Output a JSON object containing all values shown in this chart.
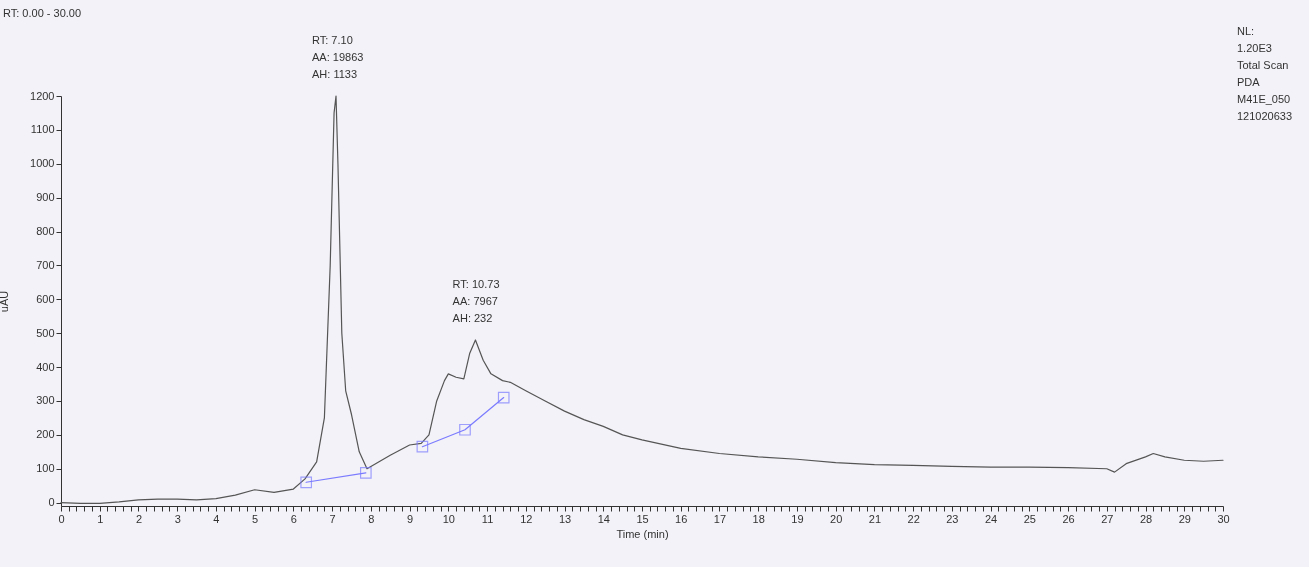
{
  "chart_data": {
    "type": "line",
    "title": "RT: 0.00 - 30.00",
    "xlabel": "Time (min)",
    "ylabel": "uAU",
    "annotations": [
      {
        "text": "RT: 7.10\nAA: 19863\nAH: 1133",
        "x": 7.1,
        "y": 1200
      },
      {
        "text": "RT: 10.73\nAA: 7967\nAH: 232",
        "x": 10.73,
        "y": 480
      },
      "NL:\n1.20E3\nTotal Scan\nPDA\nM41E_050\n121020633"
    ],
    "series": [
      {
        "color": "#555555",
        "marker": "none",
        "x": [
          0,
          0.5,
          1,
          1.5,
          2,
          2.5,
          3,
          3.5,
          4,
          4.5,
          5,
          5.5,
          6,
          6.3,
          6.6,
          6.8,
          6.95,
          7.05,
          7.1,
          7.15,
          7.25,
          7.35,
          7.5,
          7.7,
          7.9,
          8.2,
          8.5,
          9,
          9.3,
          9.5,
          9.7,
          9.9,
          10.0,
          10.2,
          10.4,
          10.55,
          10.7,
          10.9,
          11.1,
          11.4,
          11.6,
          12,
          12.5,
          13,
          13.5,
          14,
          14.5,
          15,
          16,
          17,
          18,
          19,
          20,
          21,
          22,
          23,
          24,
          25,
          26,
          27,
          27.2,
          27.5,
          28,
          28.2,
          28.5,
          29,
          29.5,
          30
        ],
        "values": [
          0,
          -2,
          -2,
          2,
          8,
          10,
          10,
          8,
          12,
          22,
          38,
          30,
          40,
          70,
          120,
          250,
          700,
          1150,
          1200,
          1000,
          500,
          330,
          260,
          150,
          100,
          120,
          140,
          170,
          175,
          200,
          300,
          360,
          380,
          370,
          365,
          440,
          480,
          420,
          380,
          360,
          355,
          330,
          300,
          270,
          245,
          225,
          200,
          185,
          160,
          145,
          135,
          128,
          118,
          112,
          110,
          107,
          105,
          105,
          103,
          100,
          90,
          115,
          135,
          145,
          135,
          125,
          122,
          125
        ]
      },
      {
        "color": "#7b7bff",
        "marker": "square",
        "x": [
          6.33,
          7.87,
          8.6,
          9.33,
          10.43,
          11.43
        ],
        "values": [
          60,
          88,
          null,
          165,
          215,
          310
        ]
      }
    ],
    "xlim": [
      0,
      30
    ],
    "ylim": [
      -10,
      1200
    ],
    "xticks": [
      0,
      {
        "value": 0.2,
        "label": null
      },
      {
        "value": 0.4,
        "label": null
      },
      {
        "value": 0.6,
        "label": null
      },
      {
        "value": 0.8,
        "label": null
      },
      1,
      {
        "value": 1.2,
        "label": null
      },
      {
        "value": 1.4,
        "label": null
      },
      {
        "value": 1.6,
        "label": null
      },
      {
        "value": 1.8,
        "label": null
      },
      2,
      {
        "value": 2.2,
        "label": null
      },
      {
        "value": 2.4,
        "label": null
      },
      {
        "value": 2.6,
        "label": null
      },
      {
        "value": 2.8,
        "label": null
      },
      3,
      {
        "value": 3.2,
        "label": null
      },
      {
        "value": 3.4,
        "label": null
      },
      {
        "value": 3.6,
        "label": null
      },
      {
        "value": 3.8,
        "label": null
      },
      4,
      {
        "value": 4.2,
        "label": null
      },
      {
        "value": 4.4,
        "label": null
      },
      {
        "value": 4.6,
        "label": null
      },
      {
        "value": 4.8,
        "label": null
      },
      5,
      {
        "value": 5.2,
        "label": null
      },
      {
        "value": 5.4,
        "label": null
      },
      {
        "value": 5.6,
        "label": null
      },
      {
        "value": 5.8,
        "label": null
      },
      6,
      {
        "value": 6.2,
        "label": null
      },
      {
        "value": 6.4,
        "label": null
      },
      {
        "value": 6.6,
        "label": null
      },
      {
        "value": 6.8,
        "label": null
      },
      7,
      {
        "value": 7.2,
        "label": null
      },
      {
        "value": 7.4,
        "label": null
      },
      {
        "value": 7.6,
        "label": null
      },
      {
        "value": 7.8,
        "label": null
      },
      8,
      {
        "value": 8.2,
        "label": null
      },
      {
        "value": 8.4,
        "label": null
      },
      {
        "value": 8.6,
        "label": null
      },
      {
        "value": 8.8,
        "label": null
      },
      9,
      {
        "value": 9.2,
        "label": null
      },
      {
        "value": 9.4,
        "label": null
      },
      {
        "value": 9.6,
        "label": null
      },
      {
        "value": 9.8,
        "label": null
      },
      10,
      {
        "value": 10.2,
        "label": null
      },
      {
        "value": 10.4,
        "label": null
      },
      {
        "value": 10.6,
        "label": null
      },
      {
        "value": 10.8,
        "label": null
      },
      11,
      {
        "value": 11.2,
        "label": null
      },
      {
        "value": 11.4,
        "label": null
      },
      {
        "value": 11.6,
        "label": null
      },
      {
        "value": 11.8,
        "label": null
      },
      12,
      {
        "value": 12.2,
        "label": null
      },
      {
        "value": 12.4,
        "label": null
      },
      {
        "value": 12.6,
        "label": null
      },
      {
        "value": 12.8,
        "label": null
      },
      13,
      {
        "value": 13.2,
        "label": null
      },
      {
        "value": 13.4,
        "label": null
      },
      {
        "value": 13.6,
        "label": null
      },
      {
        "value": 13.8,
        "label": null
      },
      14,
      {
        "value": 14.2,
        "label": null
      },
      {
        "value": 14.4,
        "label": null
      },
      {
        "value": 14.6,
        "label": null
      },
      {
        "value": 14.8,
        "label": null
      },
      15,
      {
        "value": 15.2,
        "label": null
      },
      {
        "value": 15.4,
        "label": null
      },
      {
        "value": 15.6,
        "label": null
      },
      {
        "value": 15.8,
        "label": null
      },
      16,
      {
        "value": 16.2,
        "label": null
      },
      {
        "value": 16.4,
        "label": null
      },
      {
        "value": 16.6,
        "label": null
      },
      {
        "value": 16.8,
        "label": null
      },
      17,
      {
        "value": 17.2,
        "label": null
      },
      {
        "value": 17.4,
        "label": null
      },
      {
        "value": 17.6,
        "label": null
      },
      {
        "value": 17.8,
        "label": null
      },
      18,
      {
        "value": 18.2,
        "label": null
      },
      {
        "value": 18.4,
        "label": null
      },
      {
        "value": 18.6,
        "label": null
      },
      {
        "value": 18.8,
        "label": null
      },
      19,
      {
        "value": 19.2,
        "label": null
      },
      {
        "value": 19.4,
        "label": null
      },
      {
        "value": 19.6,
        "label": null
      },
      {
        "value": 19.8,
        "label": null
      },
      20,
      {
        "value": 20.2,
        "label": null
      },
      {
        "value": 20.4,
        "label": null
      },
      {
        "value": 20.6,
        "label": null
      },
      {
        "value": 20.8,
        "label": null
      },
      21,
      {
        "value": 21.2,
        "label": null
      },
      {
        "value": 21.4,
        "label": null
      },
      {
        "value": 21.6,
        "label": null
      },
      {
        "value": 21.8,
        "label": null
      },
      22,
      {
        "value": 22.2,
        "label": null
      },
      {
        "value": 22.4,
        "label": null
      },
      {
        "value": 22.6,
        "label": null
      },
      {
        "value": 22.8,
        "label": null
      },
      23,
      {
        "value": 23.2,
        "label": null
      },
      {
        "value": 23.4,
        "label": null
      },
      {
        "value": 23.6,
        "label": null
      },
      {
        "value": 23.8,
        "label": null
      },
      24,
      {
        "value": 24.2,
        "label": null
      },
      {
        "value": 24.4,
        "label": null
      },
      {
        "value": 24.6,
        "label": null
      },
      {
        "value": 24.8,
        "label": null
      },
      25,
      {
        "value": 25.2,
        "label": null
      },
      {
        "value": 25.4,
        "label": null
      },
      {
        "value": 25.6,
        "label": null
      },
      {
        "value": 25.8,
        "label": null
      },
      26,
      {
        "value": 26.2,
        "label": null
      },
      {
        "value": 26.4,
        "label": null
      },
      {
        "value": 26.6,
        "label": null
      },
      {
        "value": 26.8,
        "label": null
      },
      27,
      {
        "value": 27.2,
        "label": null
      },
      {
        "value": 27.4,
        "label": null
      },
      {
        "value": 27.6,
        "label": null
      },
      {
        "value": 27.8,
        "label": null
      },
      28,
      {
        "value": 28.2,
        "label": null
      },
      {
        "value": 28.4,
        "label": null
      },
      {
        "value": 28.6,
        "label": null
      },
      {
        "value": 28.8,
        "label": null
      },
      29,
      {
        "value": 29.2,
        "label": null
      },
      {
        "value": 29.4,
        "label": null
      },
      {
        "value": 29.6,
        "label": null
      },
      {
        "value": 29.8,
        "label": null
      },
      30
    ],
    "yticks": [
      0,
      100,
      200,
      300,
      400,
      500,
      600,
      700,
      800,
      900,
      1000,
      1100,
      1200
    ],
    "grid": false
  }
}
